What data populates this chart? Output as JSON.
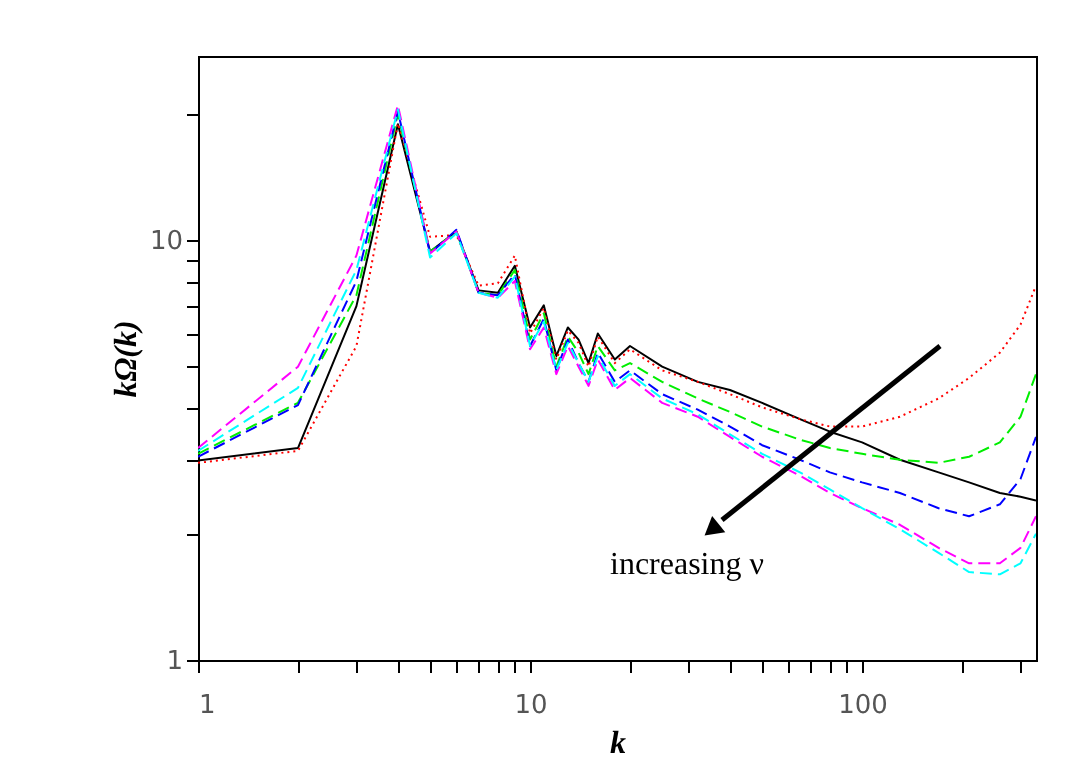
{
  "chart_data": {
    "type": "line",
    "xlabel": "k",
    "ylabel": "kΩ(k)",
    "log": "xy",
    "grid": false,
    "annotations": [
      "increasing ν"
    ],
    "xlim": [
      1,
      334
    ],
    "ylim": [
      1,
      27.5
    ],
    "xticks": [
      1,
      {
        "value": 2,
        "label": null
      },
      {
        "value": 3,
        "label": null
      },
      {
        "value": 4,
        "label": null
      },
      {
        "value": 5,
        "label": null
      },
      {
        "value": 6,
        "label": null
      },
      {
        "value": 7,
        "label": null
      },
      {
        "value": 8,
        "label": null
      },
      {
        "value": 9,
        "label": null
      },
      10,
      {
        "value": 20,
        "label": null
      },
      {
        "value": 30,
        "label": null
      },
      {
        "value": 40,
        "label": null
      },
      {
        "value": 50,
        "label": null
      },
      {
        "value": 60,
        "label": null
      },
      {
        "value": 70,
        "label": null
      },
      {
        "value": 80,
        "label": null
      },
      {
        "value": 90,
        "label": null
      },
      100,
      {
        "value": 200,
        "label": null
      },
      {
        "value": 300,
        "label": null
      }
    ],
    "yticks": [
      1,
      {
        "value": 2,
        "label": null
      },
      {
        "value": 3,
        "label": null
      },
      {
        "value": 4,
        "label": null
      },
      {
        "value": 5,
        "label": null
      },
      {
        "value": 6,
        "label": null
      },
      {
        "value": 7,
        "label": null
      },
      {
        "value": 8,
        "label": null
      },
      {
        "value": 9,
        "label": null
      },
      10,
      {
        "value": 20,
        "label": null
      }
    ],
    "x": [
      1,
      2,
      3,
      4,
      5,
      6,
      7,
      8,
      9,
      10,
      11,
      12,
      13,
      14,
      15,
      16,
      18,
      20,
      25,
      32,
      40,
      50,
      65,
      80,
      100,
      130,
      170,
      210,
      260,
      300,
      334
    ],
    "series": [
      {
        "color": "#000000",
        "line_style": "solid",
        "values": [
          2.99,
          3.2,
          6.97,
          18.9,
          9.4,
          10.5,
          7.6,
          7.5,
          8.7,
          6.2,
          7.0,
          5.3,
          6.2,
          5.8,
          5.1,
          6.0,
          5.2,
          5.6,
          5.0,
          4.6,
          4.4,
          4.1,
          3.75,
          3.5,
          3.3,
          3.0,
          2.8,
          2.65,
          2.5,
          2.45,
          2.4
        ]
      },
      {
        "color": "#ff0000",
        "line_style": "dotted",
        "values": [
          2.95,
          3.15,
          5.6,
          19.0,
          10.2,
          10.3,
          7.8,
          7.9,
          9.2,
          6.0,
          6.9,
          5.2,
          6.1,
          5.7,
          5.0,
          5.9,
          5.1,
          5.5,
          4.9,
          4.6,
          4.3,
          4.0,
          3.75,
          3.6,
          3.6,
          3.8,
          4.2,
          4.7,
          5.4,
          6.3,
          7.8
        ]
      },
      {
        "color": "#00ee00",
        "line_style": "dashed",
        "values": [
          3.1,
          4.1,
          7.4,
          20.0,
          9.4,
          10.5,
          7.5,
          7.4,
          8.5,
          5.8,
          6.7,
          5.0,
          5.9,
          5.4,
          4.8,
          5.6,
          4.9,
          5.1,
          4.6,
          4.2,
          3.9,
          3.6,
          3.35,
          3.2,
          3.1,
          3.0,
          2.95,
          3.05,
          3.3,
          3.8,
          4.8
        ]
      },
      {
        "color": "#0000ff",
        "line_style": "dashed",
        "values": [
          3.05,
          4.05,
          8.0,
          20.3,
          9.3,
          10.6,
          7.5,
          7.4,
          8.3,
          5.6,
          6.5,
          4.9,
          5.8,
          5.1,
          4.6,
          5.4,
          4.6,
          4.9,
          4.3,
          3.95,
          3.6,
          3.25,
          3.0,
          2.8,
          2.65,
          2.5,
          2.3,
          2.2,
          2.35,
          2.7,
          3.4
        ]
      },
      {
        "color": "#ff00ff",
        "line_style": "dashed",
        "values": [
          3.2,
          5.0,
          9.2,
          21.0,
          9.3,
          10.5,
          7.5,
          7.3,
          8.0,
          5.5,
          6.2,
          4.8,
          5.6,
          5.0,
          4.5,
          5.2,
          4.4,
          4.7,
          4.1,
          3.8,
          3.4,
          3.05,
          2.75,
          2.5,
          2.3,
          2.1,
          1.85,
          1.7,
          1.7,
          1.85,
          2.2
        ]
      },
      {
        "color": "#00ffff",
        "line_style": "dashed",
        "values": [
          3.15,
          4.45,
          8.5,
          20.5,
          9.1,
          10.4,
          7.5,
          7.3,
          8.2,
          5.6,
          6.4,
          4.9,
          5.7,
          5.1,
          4.6,
          5.3,
          4.5,
          4.8,
          4.2,
          3.85,
          3.45,
          3.1,
          2.8,
          2.55,
          2.3,
          2.05,
          1.8,
          1.62,
          1.6,
          1.7,
          2.0
        ]
      }
    ]
  }
}
